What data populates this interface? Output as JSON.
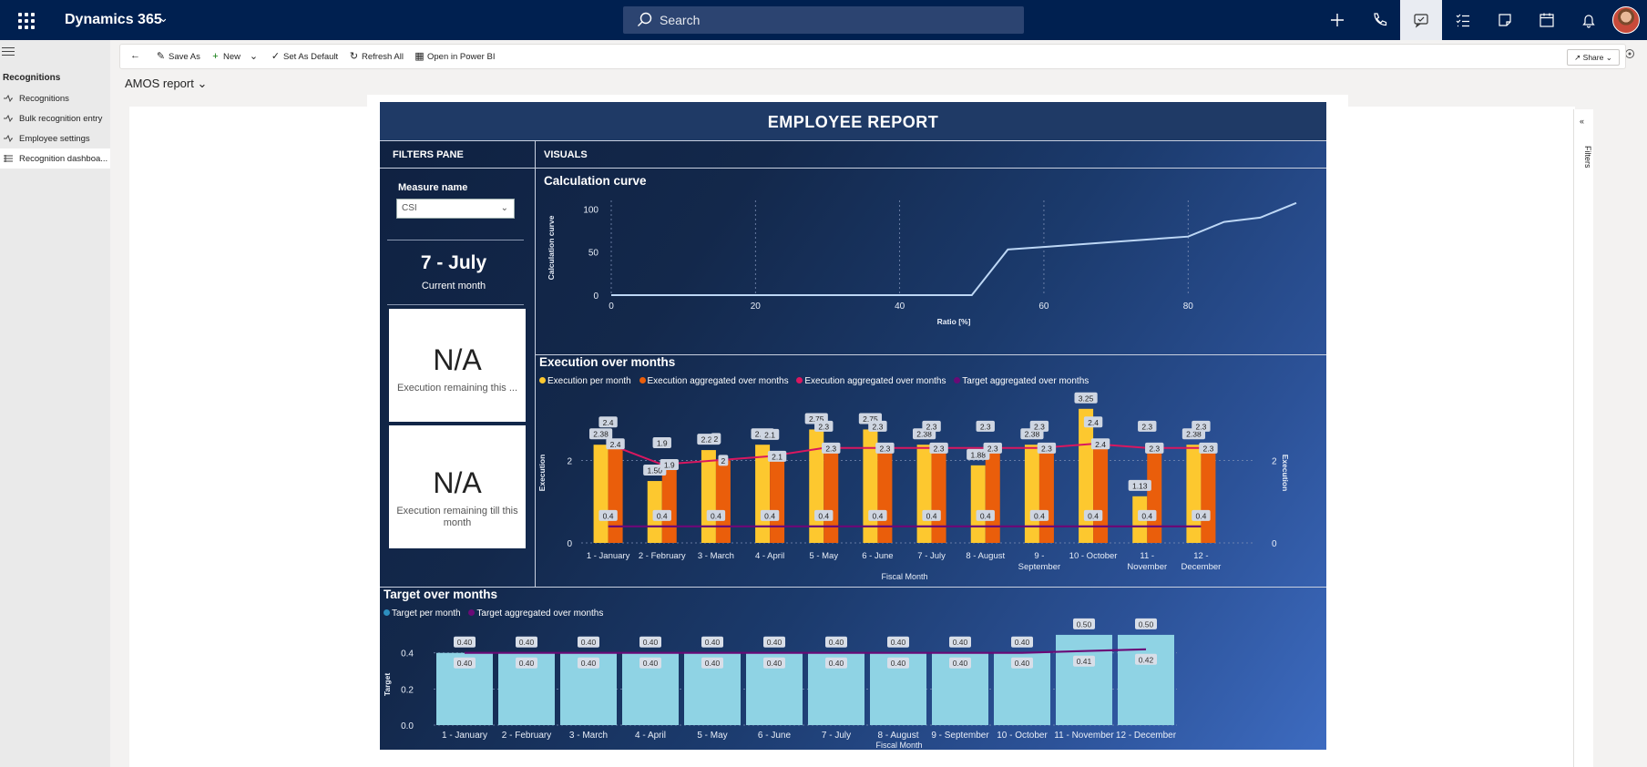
{
  "header": {
    "app_title": "Dynamics 365",
    "search_placeholder": "Search"
  },
  "left_nav": {
    "group": "Recognitions",
    "items": [
      {
        "label": "Recognitions"
      },
      {
        "label": "Bulk recognition entry"
      },
      {
        "label": "Employee settings"
      },
      {
        "label": "Recognition dashboa..."
      }
    ]
  },
  "toolbar": {
    "save_as": "Save As",
    "new": "New",
    "set_as_default": "Set As Default",
    "refresh_all": "Refresh All",
    "open_in_power_bi": "Open in Power BI",
    "share": "Share"
  },
  "report_selector": "AMOS report",
  "filters_label": "Filters",
  "report": {
    "title": "EMPLOYEE REPORT",
    "filters_pane": "FILTERS PANE",
    "visuals": "VISUALS",
    "measure_label": "Measure name",
    "measure_value": "CSI",
    "current_month_value": "7 - July",
    "current_month_label": "Current month",
    "card1_value": "N/A",
    "card1_label": "Execution remaining this ...",
    "card2_value": "N/A",
    "card2_label": "Execution remaining till this month"
  },
  "colors": {
    "exec_per_month": "#fdc82f",
    "exec_aggregated_orange": "#ea5e0b",
    "exec_aggregated_line": "#d9175f",
    "target_aggregated_line": "#6a0a76",
    "target_bar": "#8fd3e4",
    "curve": "#bdd7f5"
  },
  "chart_data": [
    {
      "type": "line",
      "title": "Calculation curve",
      "xlabel": "Ratio [%]",
      "ylabel": "Calculation curve",
      "xlim": [
        0,
        95
      ],
      "ylim": [
        0,
        110
      ],
      "xticks": [
        0,
        20,
        40,
        60,
        80
      ],
      "yticks": [
        0,
        50,
        100
      ],
      "x": [
        0,
        10,
        20,
        30,
        40,
        50,
        55,
        60,
        70,
        80,
        85,
        90,
        95
      ],
      "y": [
        0,
        0,
        0,
        0,
        0,
        0,
        53,
        56,
        62,
        68,
        85,
        90,
        107
      ]
    },
    {
      "type": "bar",
      "title": "Execution over months",
      "xlabel": "Fiscal Month",
      "ylabel": "Execution",
      "ylim": [
        0,
        3.4
      ],
      "yticks": [
        0,
        2
      ],
      "legend": [
        "Execution per month",
        "Execution aggregated over months",
        "Execution aggregated over months",
        "Target aggregated over months"
      ],
      "categories": [
        "1 - January",
        "2 - February",
        "3 - March",
        "4 - April",
        "5 - May",
        "6 - June",
        "7 - July",
        "8 - August",
        "9 - September",
        "10 - October",
        "11 - November",
        "12 - December"
      ],
      "series": [
        {
          "name": "Execution per month",
          "values": [
            2.38,
            1.5,
            2.25,
            2.38,
            2.75,
            2.75,
            2.38,
            1.88,
            2.38,
            3.25,
            1.13,
            2.38
          ]
        },
        {
          "name": "Execution aggregated over months",
          "values": [
            2.4,
            1.9,
            2.0,
            2.1,
            2.3,
            2.3,
            2.3,
            2.3,
            2.3,
            2.4,
            2.3,
            2.3
          ]
        },
        {
          "name": "Execution aggregated over months (line)",
          "values": [
            2.4,
            1.9,
            2.0,
            2.1,
            2.3,
            2.3,
            2.3,
            2.3,
            2.3,
            2.4,
            2.3,
            2.3
          ]
        },
        {
          "name": "Target aggregated over months",
          "values": [
            0.4,
            0.4,
            0.4,
            0.4,
            0.4,
            0.4,
            0.4,
            0.4,
            0.4,
            0.4,
            0.4,
            0.4
          ]
        }
      ]
    },
    {
      "type": "bar",
      "title": "Target over months",
      "xlabel": "Fiscal Month",
      "ylabel": "Target",
      "ylim": [
        0,
        0.55
      ],
      "yticks": [
        0.0,
        0.2,
        0.4
      ],
      "legend": [
        "Target per month",
        "Target aggregated over months"
      ],
      "categories": [
        "1 - January",
        "2 - February",
        "3 - March",
        "4 - April",
        "5 - May",
        "6 - June",
        "7 - July",
        "8 - August",
        "9 - September",
        "10 - October",
        "11 - November",
        "12 - December"
      ],
      "series": [
        {
          "name": "Target per month",
          "values": [
            0.4,
            0.4,
            0.4,
            0.4,
            0.4,
            0.4,
            0.4,
            0.4,
            0.4,
            0.4,
            0.5,
            0.5
          ]
        },
        {
          "name": "Target aggregated over months",
          "values": [
            0.4,
            0.4,
            0.4,
            0.4,
            0.4,
            0.4,
            0.4,
            0.4,
            0.4,
            0.4,
            0.41,
            0.42
          ]
        }
      ]
    }
  ]
}
